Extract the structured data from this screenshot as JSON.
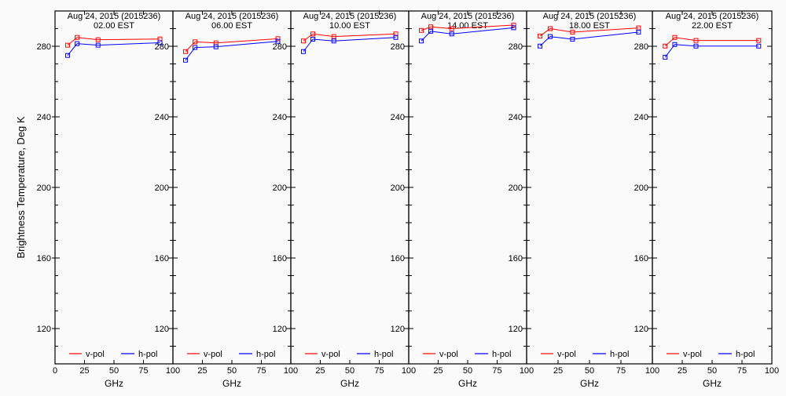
{
  "chart_data": {
    "type": "line",
    "ylabel": "Brightness Temperature, Deg K",
    "xlabel": "GHz",
    "ylim": [
      100,
      300
    ],
    "xlim": [
      0,
      100
    ],
    "yticks": [
      120,
      160,
      200,
      240,
      280
    ],
    "xticks": [
      0,
      25,
      50,
      75,
      100
    ],
    "legend": [
      "v-pol",
      "h-pol"
    ],
    "legend_position": "bottom",
    "colors": {
      "v-pol": "#ff0000",
      "h-pol": "#0000ff"
    },
    "x": [
      10.65,
      18.7,
      36.5,
      89
    ],
    "panels": [
      {
        "title": "Aug 24, 2015 (2015236)",
        "subtitle": "02.00 EST",
        "series": [
          {
            "name": "v-pol",
            "values": [
              280.6,
              285.0,
              283.7,
              284.1
            ]
          },
          {
            "name": "h-pol",
            "values": [
              274.8,
              281.5,
              280.6,
              282.0
            ]
          }
        ]
      },
      {
        "title": "Aug 24, 2015 (2015236)",
        "subtitle": "06.00 EST",
        "series": [
          {
            "name": "v-pol",
            "values": [
              277.0,
              282.5,
              281.9,
              284.3
            ]
          },
          {
            "name": "h-pol",
            "values": [
              272.1,
              279.3,
              279.7,
              282.8
            ]
          }
        ]
      },
      {
        "title": "Aug 24, 2015 (2015236)",
        "subtitle": "10.00 EST",
        "series": [
          {
            "name": "v-pol",
            "values": [
              283.0,
              287.0,
              285.5,
              287.0
            ]
          },
          {
            "name": "h-pol",
            "values": [
              277.0,
              284.0,
              283.0,
              285.0
            ]
          }
        ]
      },
      {
        "title": "Aug 24, 2015 (2015236)",
        "subtitle": "14.00 EST",
        "series": [
          {
            "name": "v-pol",
            "values": [
              289.0,
              291.0,
              290.0,
              292.0
            ]
          },
          {
            "name": "h-pol",
            "values": [
              283.0,
              288.5,
              287.0,
              290.5
            ]
          }
        ]
      },
      {
        "title": "Aug 24, 2015 (2015236)",
        "subtitle": "18.00 EST",
        "series": [
          {
            "name": "v-pol",
            "values": [
              285.8,
              290.0,
              288.0,
              290.4
            ]
          },
          {
            "name": "h-pol",
            "values": [
              280.1,
              285.5,
              284.0,
              288.0
            ]
          }
        ]
      },
      {
        "title": "Aug 24, 2015 (2015236)",
        "subtitle": "22.00 EST",
        "series": [
          {
            "name": "v-pol",
            "values": [
              280.1,
              285.0,
              283.3,
              283.3
            ]
          },
          {
            "name": "h-pol",
            "values": [
              273.8,
              281.0,
              280.1,
              280.1
            ]
          }
        ]
      }
    ]
  }
}
